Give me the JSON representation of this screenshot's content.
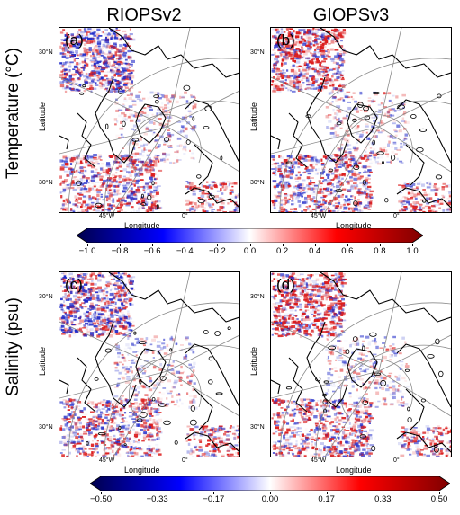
{
  "columns": [
    "RIOPSv2",
    "GIOPSv3"
  ],
  "rows": [
    "Temperature (°C)",
    "Salinity (psu)"
  ],
  "panels": [
    {
      "label": "(a)",
      "lat_ticks": [
        "30°N",
        "30°N"
      ],
      "lon_ticks": [
        "45°W",
        "0°"
      ],
      "xlabel": "Longitude",
      "ylabel": "Latitude"
    },
    {
      "label": "(b)",
      "lat_ticks": [
        "30°N",
        "30°N"
      ],
      "lon_ticks": [
        "45°W",
        "0°"
      ],
      "xlabel": "Longitude",
      "ylabel": "Latitude"
    },
    {
      "label": "(c)",
      "lat_ticks": [
        "30°N",
        "30°N"
      ],
      "lon_ticks": [
        "45°W",
        "0°"
      ],
      "xlabel": "Longitude",
      "ylabel": "Latitude"
    },
    {
      "label": "(d)",
      "lat_ticks": [
        "30°N",
        "30°N"
      ],
      "lon_ticks": [
        "45°W",
        "0°"
      ],
      "xlabel": "Longitude",
      "ylabel": "Latitude"
    }
  ],
  "colorbars": [
    {
      "ticks": [
        "−1.0",
        "−0.8",
        "−0.6",
        "−0.4",
        "−0.2",
        "0.0",
        "0.2",
        "0.4",
        "0.6",
        "0.8",
        "1.0"
      ],
      "cmap": "seismic"
    },
    {
      "ticks": [
        "−0.50",
        "−0.33",
        "−0.17",
        "0.00",
        "0.17",
        "0.33",
        "0.50"
      ],
      "cmap": "seismic"
    }
  ],
  "colors": {
    "neg": "#00006e",
    "mid": "#ffffff",
    "pos": "#800000"
  }
}
